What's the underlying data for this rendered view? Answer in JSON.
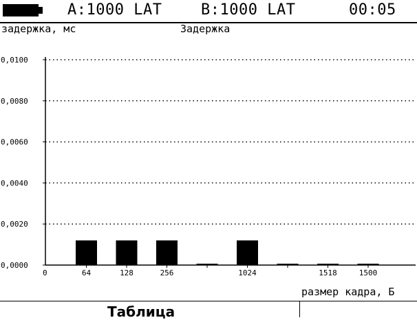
{
  "status": {
    "channel_a": "A:1000 LAT",
    "channel_b": "B:1000 LAT",
    "time": "00:05"
  },
  "chart_data": {
    "type": "bar",
    "title": "Задержка",
    "ylabel": "задержка, мс",
    "xlabel": "размер кадра, Б",
    "ylim": [
      0,
      0.01
    ],
    "yticks": [
      "0,0000",
      "0,0020",
      "0,0040",
      "0,0060",
      "0,0080",
      "0,0100"
    ],
    "grid": true,
    "x_origin_label": "0",
    "categories": [
      "64",
      "128",
      "256",
      "",
      "1024",
      "",
      "1518",
      "1500"
    ],
    "values": [
      0.0012,
      0.0012,
      0.0012,
      3e-05,
      0.0012,
      3e-05,
      3e-05,
      3e-05
    ],
    "bar_color": "#000000"
  },
  "bottom": {
    "button_label": "Таблица"
  }
}
